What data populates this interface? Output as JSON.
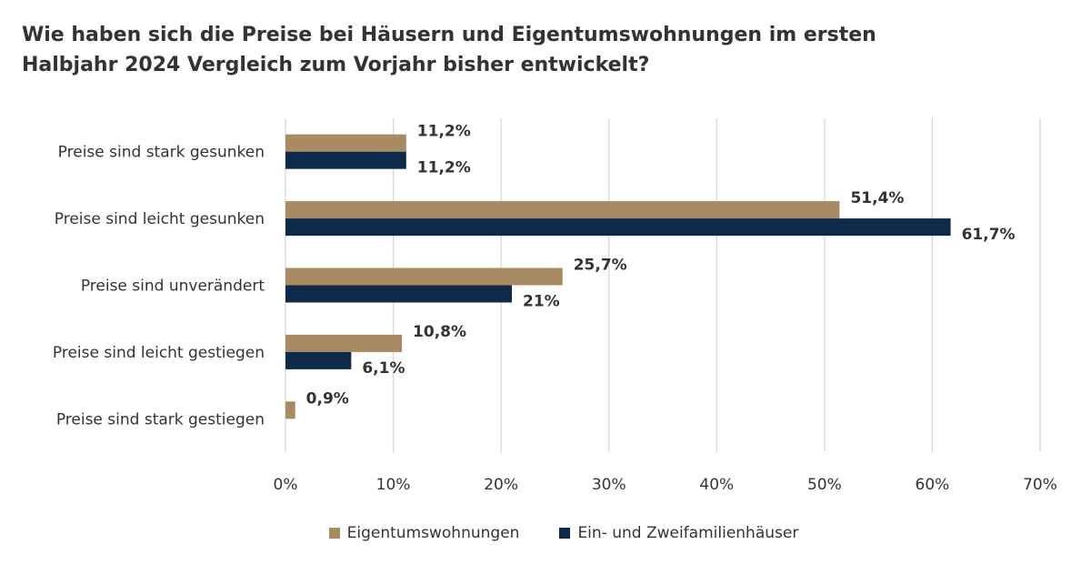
{
  "title_lines": [
    "Wie haben sich die Preise bei Häusern und Eigentumswohnungen im ersten",
    "Halbjahr 2024 Vergleich zum Vorjahr bisher entwickelt?"
  ],
  "colors": {
    "eigentumswohnungen": "#a88b63",
    "haeuser": "#0d2a4a",
    "grid": "#d9d9d9"
  },
  "chart_data": {
    "type": "bar",
    "orientation": "horizontal",
    "title": "Wie haben sich die Preise bei Häusern und Eigentumswohnungen im ersten Halbjahr 2024 Vergleich zum Vorjahr bisher entwickelt?",
    "categories": [
      "Preise sind stark gesunken",
      "Preise sind leicht gesunken",
      "Preise sind unverändert",
      "Preise sind leicht gestiegen",
      "Preise sind stark gestiegen"
    ],
    "series": [
      {
        "name": "Eigentumswohnungen",
        "color": "#a88b63",
        "values": [
          11.2,
          51.4,
          25.7,
          10.8,
          0.9
        ],
        "labels": [
          "11,2%",
          "51,4%",
          "25,7%",
          "10,8%",
          "0,9%"
        ]
      },
      {
        "name": "Ein- und Zweifamilienhäuser",
        "color": "#0d2a4a",
        "values": [
          11.2,
          61.7,
          21,
          6.1,
          null
        ],
        "labels": [
          "11,2%",
          "61,7%",
          "21%",
          "6,1%",
          ""
        ]
      }
    ],
    "xlim": [
      0,
      70
    ],
    "xticks": [
      0,
      10,
      20,
      30,
      40,
      50,
      60,
      70
    ],
    "xtick_labels": [
      "0%",
      "10%",
      "20%",
      "30%",
      "40%",
      "50%",
      "60%",
      "70%"
    ],
    "grid": true,
    "legend_position": "bottom",
    "xlabel": "",
    "ylabel": ""
  },
  "legend": {
    "items": [
      {
        "label": "Eigentumswohnungen",
        "color": "#a88b63"
      },
      {
        "label": "Ein- und Zweifamilienhäuser",
        "color": "#0d2a4a"
      }
    ]
  }
}
